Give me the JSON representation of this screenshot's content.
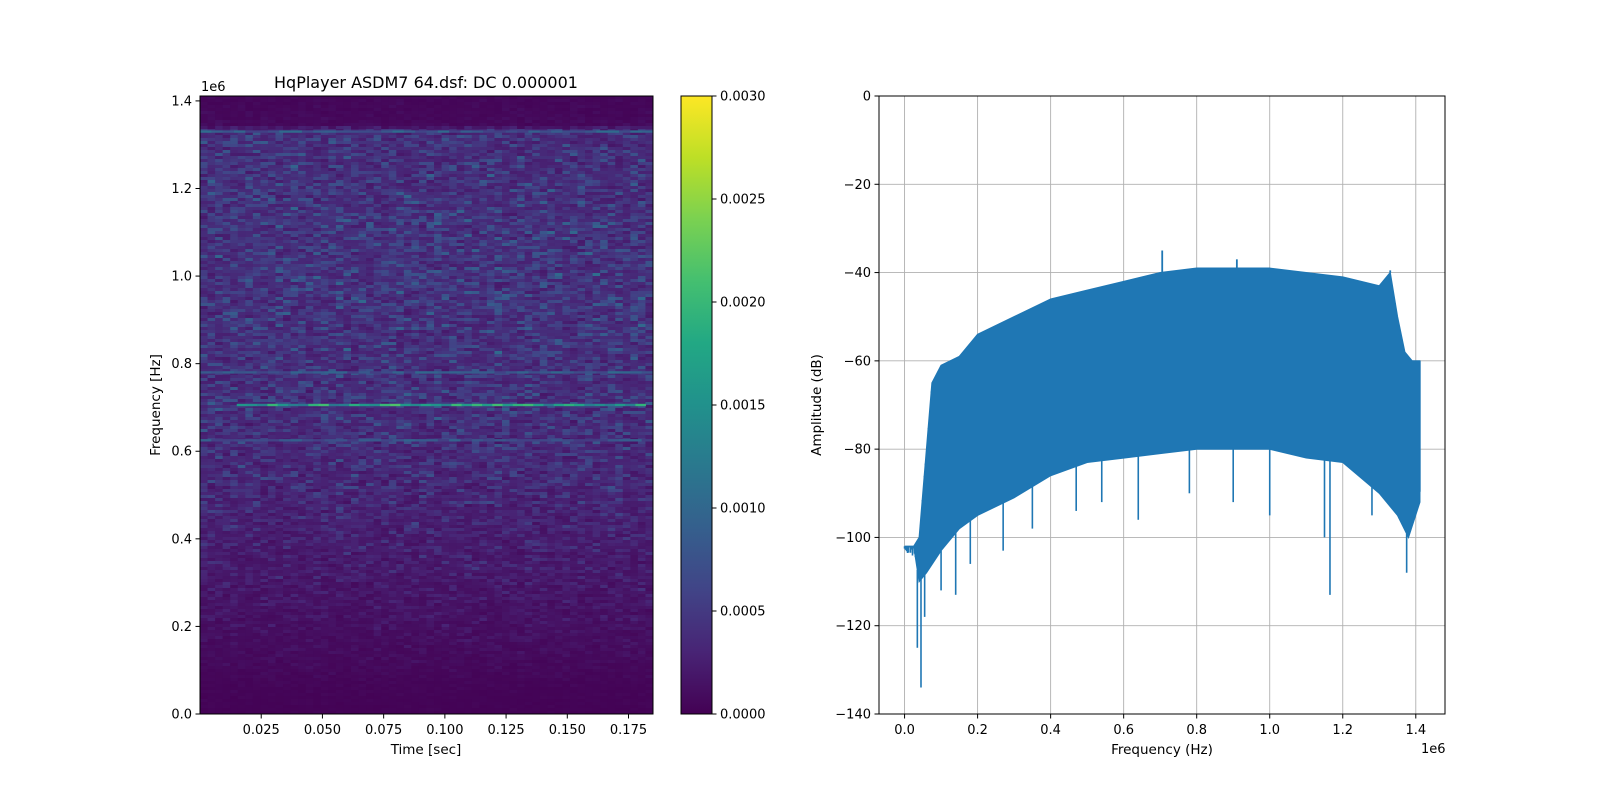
{
  "chart_data": [
    {
      "type": "heatmap",
      "title": "HqPlayer ASDM7 64.dsf: DC 0.000001",
      "xlabel": "Time [sec]",
      "ylabel": "Frequency [Hz]",
      "xlim": [
        0.0,
        0.185
      ],
      "ylim": [
        0,
        1411200
      ],
      "y_offset_label": "1e6",
      "x_ticks": [
        {
          "value": 0.025,
          "label": "0.025"
        },
        {
          "value": 0.05,
          "label": "0.050"
        },
        {
          "value": 0.075,
          "label": "0.075"
        },
        {
          "value": 0.1,
          "label": "0.100"
        },
        {
          "value": 0.125,
          "label": "0.125"
        },
        {
          "value": 0.15,
          "label": "0.150"
        },
        {
          "value": 0.175,
          "label": "0.175"
        }
      ],
      "y_ticks": [
        {
          "value": 0,
          "label": "0.0"
        },
        {
          "value": 200000,
          "label": "0.2"
        },
        {
          "value": 400000,
          "label": "0.4"
        },
        {
          "value": 600000,
          "label": "0.6"
        },
        {
          "value": 800000,
          "label": "0.8"
        },
        {
          "value": 1000000,
          "label": "1.0"
        },
        {
          "value": 1200000,
          "label": "1.2"
        },
        {
          "value": 1400000,
          "label": "1.4"
        }
      ],
      "colormap": "viridis",
      "color_range": [
        0.0,
        0.003
      ],
      "colorbar_ticks": [
        {
          "value": 0.0,
          "label": "0.0000"
        },
        {
          "value": 0.0005,
          "label": "0.0005"
        },
        {
          "value": 0.001,
          "label": "0.0010"
        },
        {
          "value": 0.0015,
          "label": "0.0015"
        },
        {
          "value": 0.002,
          "label": "0.0020"
        },
        {
          "value": 0.0025,
          "label": "0.0025"
        },
        {
          "value": 0.003,
          "label": "0.0030"
        }
      ],
      "frequency_profile": [
        {
          "freq": 0,
          "level": 2e-05
        },
        {
          "freq": 60000,
          "level": 4e-05
        },
        {
          "freq": 120000,
          "level": 9e-05
        },
        {
          "freq": 200000,
          "level": 0.00016
        },
        {
          "freq": 300000,
          "level": 0.00024
        },
        {
          "freq": 400000,
          "level": 0.00032
        },
        {
          "freq": 500000,
          "level": 0.0004
        },
        {
          "freq": 600000,
          "level": 0.00046
        },
        {
          "freq": 700000,
          "level": 0.0005
        },
        {
          "freq": 800000,
          "level": 0.00052
        },
        {
          "freq": 900000,
          "level": 0.00054
        },
        {
          "freq": 1000000,
          "level": 0.00056
        },
        {
          "freq": 1100000,
          "level": 0.00055
        },
        {
          "freq": 1200000,
          "level": 0.00053
        },
        {
          "freq": 1300000,
          "level": 0.0005
        },
        {
          "freq": 1330000,
          "level": 0.00045
        },
        {
          "freq": 1345000,
          "level": 8e-05
        },
        {
          "freq": 1411200,
          "level": 5e-05
        }
      ],
      "tone_lines": [
        {
          "freq": 705600,
          "level": 0.0018,
          "t_start": 0.015,
          "t_end": 0.182
        },
        {
          "freq": 780000,
          "level": 0.0009,
          "t_start": 0.0,
          "t_end": 0.185
        },
        {
          "freq": 625000,
          "level": 0.0008,
          "t_start": 0.0,
          "t_end": 0.185
        },
        {
          "freq": 1330000,
          "level": 0.0009,
          "t_start": 0.0,
          "t_end": 0.185
        }
      ]
    },
    {
      "type": "area",
      "title": "",
      "xlabel": "Frequency (Hz)",
      "ylabel": "Amplitude (dB)",
      "xlim": [
        -70000,
        1480000
      ],
      "ylim": [
        -140,
        0
      ],
      "x_offset_label": "1e6",
      "grid": true,
      "color": "#1f77b4",
      "x_ticks": [
        {
          "value": 0,
          "label": "0.0"
        },
        {
          "value": 200000,
          "label": "0.2"
        },
        {
          "value": 400000,
          "label": "0.4"
        },
        {
          "value": 600000,
          "label": "0.6"
        },
        {
          "value": 800000,
          "label": "0.8"
        },
        {
          "value": 1000000,
          "label": "1.0"
        },
        {
          "value": 1200000,
          "label": "1.2"
        },
        {
          "value": 1400000,
          "label": "1.4"
        }
      ],
      "y_ticks": [
        {
          "value": 0,
          "label": "0"
        },
        {
          "value": -20,
          "label": "−20"
        },
        {
          "value": -40,
          "label": "−40"
        },
        {
          "value": -60,
          "label": "−60"
        },
        {
          "value": -80,
          "label": "−80"
        },
        {
          "value": -100,
          "label": "−100"
        },
        {
          "value": -120,
          "label": "−120"
        },
        {
          "value": -140,
          "label": "−140"
        }
      ],
      "upper_envelope": [
        {
          "x": 0,
          "y": -102
        },
        {
          "x": 25000,
          "y": -102
        },
        {
          "x": 40000,
          "y": -100
        },
        {
          "x": 60000,
          "y": -80
        },
        {
          "x": 75000,
          "y": -65
        },
        {
          "x": 100000,
          "y": -61
        },
        {
          "x": 150000,
          "y": -59
        },
        {
          "x": 200000,
          "y": -54
        },
        {
          "x": 300000,
          "y": -50
        },
        {
          "x": 400000,
          "y": -46
        },
        {
          "x": 500000,
          "y": -44
        },
        {
          "x": 600000,
          "y": -42
        },
        {
          "x": 700000,
          "y": -40
        },
        {
          "x": 800000,
          "y": -39
        },
        {
          "x": 900000,
          "y": -39
        },
        {
          "x": 1000000,
          "y": -39
        },
        {
          "x": 1100000,
          "y": -40
        },
        {
          "x": 1200000,
          "y": -41
        },
        {
          "x": 1300000,
          "y": -43
        },
        {
          "x": 1330000,
          "y": -40
        },
        {
          "x": 1350000,
          "y": -50
        },
        {
          "x": 1370000,
          "y": -58
        },
        {
          "x": 1390000,
          "y": -60
        },
        {
          "x": 1411200,
          "y": -60
        }
      ],
      "lower_envelope": [
        {
          "x": 0,
          "y": -102
        },
        {
          "x": 25000,
          "y": -102
        },
        {
          "x": 40000,
          "y": -110
        },
        {
          "x": 60000,
          "y": -108
        },
        {
          "x": 100000,
          "y": -103
        },
        {
          "x": 150000,
          "y": -98
        },
        {
          "x": 200000,
          "y": -95
        },
        {
          "x": 300000,
          "y": -91
        },
        {
          "x": 400000,
          "y": -86
        },
        {
          "x": 500000,
          "y": -83
        },
        {
          "x": 600000,
          "y": -82
        },
        {
          "x": 700000,
          "y": -81
        },
        {
          "x": 800000,
          "y": -80
        },
        {
          "x": 900000,
          "y": -80
        },
        {
          "x": 1000000,
          "y": -80
        },
        {
          "x": 1100000,
          "y": -82
        },
        {
          "x": 1200000,
          "y": -83
        },
        {
          "x": 1300000,
          "y": -90
        },
        {
          "x": 1350000,
          "y": -95
        },
        {
          "x": 1380000,
          "y": -100
        },
        {
          "x": 1411200,
          "y": -92
        }
      ],
      "peaks": [
        {
          "x": 705600,
          "y": -35
        },
        {
          "x": 910000,
          "y": -37
        },
        {
          "x": 1330000,
          "y": -39.5
        }
      ],
      "dips": [
        {
          "x": 35000,
          "y": -125
        },
        {
          "x": 45000,
          "y": -134
        },
        {
          "x": 55000,
          "y": -118
        },
        {
          "x": 100000,
          "y": -112
        },
        {
          "x": 140000,
          "y": -113
        },
        {
          "x": 180000,
          "y": -106
        },
        {
          "x": 270000,
          "y": -103
        },
        {
          "x": 350000,
          "y": -98
        },
        {
          "x": 470000,
          "y": -94
        },
        {
          "x": 540000,
          "y": -92
        },
        {
          "x": 640000,
          "y": -96
        },
        {
          "x": 780000,
          "y": -90
        },
        {
          "x": 900000,
          "y": -92
        },
        {
          "x": 1000000,
          "y": -95
        },
        {
          "x": 1150000,
          "y": -100
        },
        {
          "x": 1165000,
          "y": -113
        },
        {
          "x": 1280000,
          "y": -95
        },
        {
          "x": 1375000,
          "y": -108
        }
      ]
    }
  ]
}
